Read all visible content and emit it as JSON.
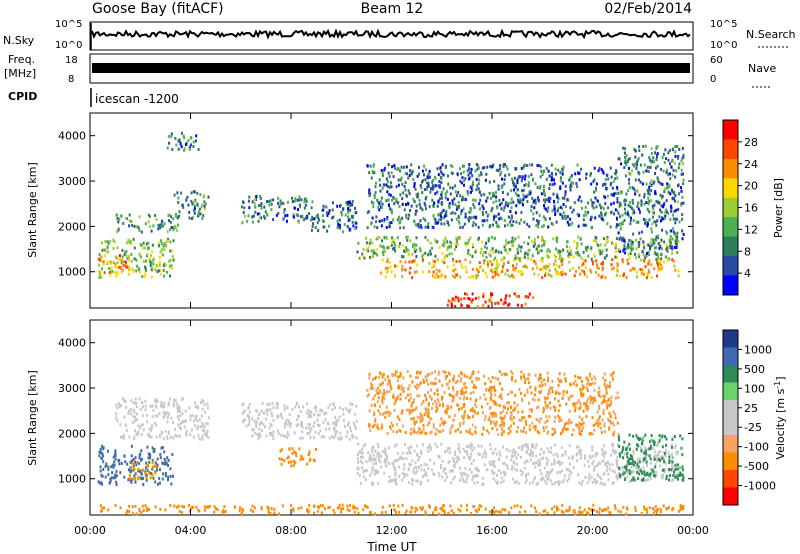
{
  "header": {
    "station": "Goose Bay (fitACF)",
    "beam": "Beam 12",
    "date": "02/Feb/2014"
  },
  "top_panels": {
    "nsky_label": "N.Sky",
    "nsky_ticks": [
      "10^5",
      "10^0"
    ],
    "nsearch_label": "N.Search",
    "nsearch_ticks": [
      "10^5",
      "10^0"
    ],
    "freq_label_1": "Freq.",
    "freq_label_2": "[MHz]",
    "freq_ticks": [
      "18",
      "8"
    ],
    "nave_label": "Nave",
    "nave_ticks": [
      "60",
      "0"
    ],
    "cpid_label": "CPID",
    "cpid_value": "icescan -1200"
  },
  "colors": {
    "power_scale": [
      "#0000ff",
      "#2a4aa8",
      "#2e7d5a",
      "#4caf50",
      "#9acd32",
      "#ffd700",
      "#ff8c00",
      "#ff4500",
      "#ff0000"
    ],
    "velocity_scale": [
      "#ff0000",
      "#ff4500",
      "#ff8c00",
      "#f4a460",
      "#c8c8c8",
      "#c8c8c8",
      "#6bd36b",
      "#2e8b57",
      "#4169b0",
      "#1e3a8a"
    ]
  },
  "chart_data": [
    {
      "type": "heatmap",
      "name_ref": "power",
      "ylabel": "Slant Range [km]",
      "yticks": [
        "4000",
        "3000",
        "2000",
        "1000"
      ],
      "ylim": [
        200,
        4500
      ],
      "xlim_hours": [
        0,
        24
      ],
      "colorbar_label": "Power [dB]",
      "colorbar_ticks": [
        "28",
        "24",
        "20",
        "16",
        "12",
        "8",
        "4"
      ],
      "colorbar_range": [
        0,
        30
      ],
      "regions": [
        {
          "t": [
            0.3,
            3.3
          ],
          "r": [
            900,
            1750
          ],
          "v": 14
        },
        {
          "t": [
            0.3,
            1.6
          ],
          "r": [
            1000,
            1400
          ],
          "v": 22
        },
        {
          "t": [
            1.0,
            3.5
          ],
          "r": [
            1900,
            2300
          ],
          "v": 10
        },
        {
          "t": [
            3.3,
            4.7
          ],
          "r": [
            2200,
            2800
          ],
          "v": 9
        },
        {
          "t": [
            6.0,
            8.6
          ],
          "r": [
            2100,
            2700
          ],
          "v": 8
        },
        {
          "t": [
            8.6,
            10.6
          ],
          "r": [
            1900,
            2600
          ],
          "v": 6
        },
        {
          "t": [
            3.0,
            4.3
          ],
          "r": [
            3700,
            4100
          ],
          "v": 8
        },
        {
          "t": [
            10.6,
            23.4
          ],
          "r": [
            1300,
            1800
          ],
          "v": 12
        },
        {
          "t": [
            11.5,
            23.4
          ],
          "r": [
            900,
            1300
          ],
          "v": 20
        },
        {
          "t": [
            14.2,
            17.6
          ],
          "r": [
            250,
            550
          ],
          "v": 26
        },
        {
          "t": [
            11.0,
            21.0
          ],
          "r": [
            2000,
            3400
          ],
          "v": 7
        },
        {
          "t": [
            21.0,
            23.6
          ],
          "r": [
            1400,
            3800
          ],
          "v": 8
        }
      ]
    },
    {
      "type": "heatmap",
      "name_ref": "velocity",
      "ylabel": "Slant Range [km]",
      "yticks": [
        "4000",
        "3000",
        "2000",
        "1000"
      ],
      "ylim": [
        200,
        4500
      ],
      "xlim_hours": [
        0,
        24
      ],
      "xlabel": "Time UT",
      "xticks": [
        "00:00",
        "04:00",
        "08:00",
        "12:00",
        "16:00",
        "20:00",
        "00:00"
      ],
      "colorbar_label": "Velocity [m s^-1]",
      "colorbar_ticks": [
        "1000",
        "500",
        "100",
        "25",
        "-25",
        "-100",
        "-500",
        "-1000"
      ],
      "regions": [
        {
          "t": [
            0.3,
            3.3
          ],
          "r": [
            900,
            1750
          ],
          "v": 700
        },
        {
          "t": [
            1.5,
            2.6
          ],
          "r": [
            1000,
            1400
          ],
          "v": -200
        },
        {
          "t": [
            1.0,
            4.7
          ],
          "r": [
            1900,
            2800
          ],
          "v": 0
        },
        {
          "t": [
            6.0,
            10.6
          ],
          "r": [
            1900,
            2700
          ],
          "v": 0
        },
        {
          "t": [
            7.5,
            9.0
          ],
          "r": [
            1300,
            1700
          ],
          "v": -300
        },
        {
          "t": [
            10.6,
            23.4
          ],
          "r": [
            900,
            1800
          ],
          "v": 0
        },
        {
          "t": [
            11.0,
            21.0
          ],
          "r": [
            2000,
            3400
          ],
          "v": -100
        },
        {
          "t": [
            21.0,
            23.6
          ],
          "r": [
            1000,
            2000
          ],
          "v": 150
        },
        {
          "t": [
            0.3,
            23.6
          ],
          "r": [
            250,
            450
          ],
          "v": -200
        }
      ]
    }
  ]
}
